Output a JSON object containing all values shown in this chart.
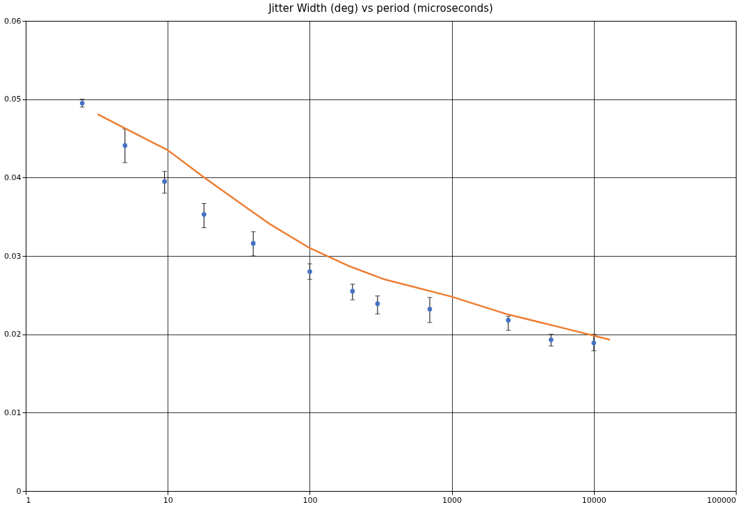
{
  "chart_data": {
    "type": "scatter",
    "title": "Jitter Width (deg) vs period (microseconds)",
    "log": "x",
    "grid": true,
    "xlim": [
      1,
      100000
    ],
    "xticks": [
      1,
      10,
      100,
      1000,
      10000,
      100000
    ],
    "ylim": [
      0,
      0.06
    ],
    "yticks": [
      0,
      0.01,
      0.02,
      0.03,
      0.04,
      0.05,
      0.06
    ],
    "series": [
      {
        "marker": "circle",
        "color": "#4472c4",
        "x": [
          2.5,
          5,
          9.5,
          18,
          40,
          100,
          200,
          300,
          700,
          2500,
          5000,
          10000
        ],
        "values": [
          0.0495,
          0.0441,
          0.0395,
          0.0353,
          0.0316,
          0.028,
          0.0255,
          0.0239,
          0.0232,
          0.0218,
          0.0193,
          0.0189
        ],
        "errors": [
          [
            0.049,
            0.05
          ],
          [
            0.0419,
            0.0462
          ],
          [
            0.038,
            0.0408
          ],
          [
            0.0336,
            0.0367
          ],
          [
            0.03,
            0.0331
          ],
          [
            0.027,
            0.029
          ],
          [
            0.0244,
            0.0264
          ],
          [
            0.0226,
            0.0249
          ],
          [
            0.0215,
            0.0247
          ],
          [
            0.0205,
            0.0223
          ],
          [
            0.0185,
            0.02
          ],
          [
            0.0179,
            0.02
          ]
        ]
      },
      {
        "type": "line",
        "color": "#ed7d31",
        "line_style": "solid",
        "x": [
          3.2,
          7.4,
          10,
          18.7,
          37,
          53,
          100,
          189,
          337,
          1000,
          2410,
          6080,
          13000
        ],
        "values": [
          0.0481,
          0.0447,
          0.0435,
          0.0398,
          0.036,
          0.034,
          0.031,
          0.0287,
          0.027,
          0.0248,
          0.0226,
          0.0208,
          0.0193
        ]
      }
    ]
  }
}
